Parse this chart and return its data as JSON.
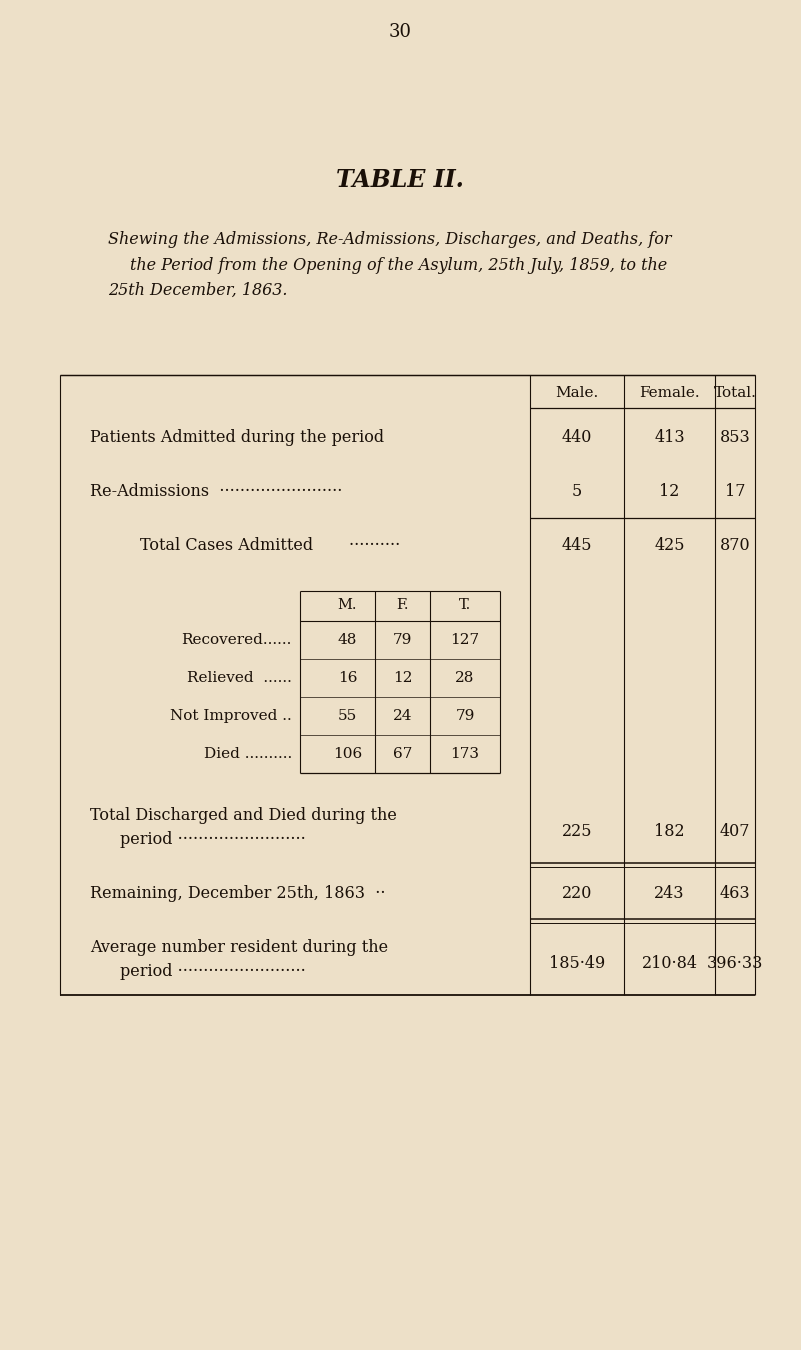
{
  "page_number": "30",
  "title": "TABLE II.",
  "subtitle_line1": "Shewing the Admissions, Re-Admissions, Discharges, and Deaths, for",
  "subtitle_line2": "the Period from the Opening of the Asylum, 25th July, 1859, to the",
  "subtitle_line3": "25th December, 1863.",
  "bg_color": "#ede0c8",
  "text_color": "#1a1008",
  "col_headers": [
    "Male.",
    "Female.",
    "Total."
  ],
  "sub_rows": [
    {
      "label": "Recovered......",
      "m": "48",
      "f": "79",
      "t": "127"
    },
    {
      "label": "Relieved  ......",
      "m": "16",
      "f": "12",
      "t": "28"
    },
    {
      "label": "Not Improved ..",
      "m": "55",
      "f": "24",
      "t": "79"
    },
    {
      "label": "Died ..........",
      "m": "106",
      "f": "67",
      "t": "173"
    }
  ]
}
